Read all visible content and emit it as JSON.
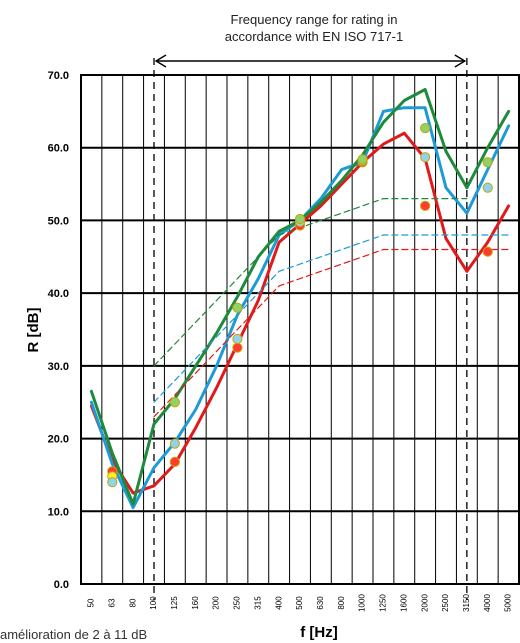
{
  "chart_data": {
    "type": "line",
    "ylabel": "R [dB]",
    "xlabel": "f [Hz]",
    "ylim": [
      0,
      70
    ],
    "y_ticks": [
      "0.0",
      "10.0",
      "20.0",
      "30.0",
      "40.0",
      "50.0",
      "60.0",
      "70.0"
    ],
    "x_ticks": [
      "50",
      "63",
      "80",
      "100",
      "125",
      "160",
      "200",
      "250",
      "315",
      "400",
      "500",
      "630",
      "800",
      "1000",
      "1250",
      "1600",
      "2000",
      "2500",
      "3150",
      "4000",
      "5000"
    ],
    "grid": true,
    "band_label_line1": "Frequency range for rating in",
    "band_label_line2": "accordance with EN ISO 717-1",
    "band_from": "100",
    "band_to": "3150",
    "series": [
      {
        "color": "#e01a1a",
        "style": "solid",
        "values": [
          24.5,
          17,
          12.5,
          13.5,
          16.5,
          21.5,
          27,
          33,
          39,
          47,
          49.5,
          52,
          55,
          58,
          60.5,
          62,
          58.5,
          47.5,
          43,
          47,
          52
        ]
      },
      {
        "color": "#1e9ad6",
        "style": "solid",
        "values": [
          25,
          16.5,
          10.5,
          16,
          19.5,
          24,
          30,
          37,
          42,
          48,
          50,
          53,
          57,
          58,
          65,
          65.5,
          65.5,
          54.5,
          51,
          57,
          63
        ]
      },
      {
        "color": "#1e8a3c",
        "style": "solid",
        "values": [
          26.5,
          18,
          11,
          22,
          25.5,
          30,
          34.5,
          39.5,
          45,
          48.5,
          50,
          52.5,
          55.5,
          59,
          63.5,
          66.5,
          68,
          59.5,
          54.5,
          60,
          65
        ]
      },
      {
        "color": "#1e8a3c",
        "style": "dashed",
        "values": [
          null,
          null,
          null,
          30,
          33,
          36,
          39,
          42,
          45,
          48,
          49,
          50,
          51,
          52,
          53,
          53,
          53,
          53,
          53,
          null,
          null
        ]
      },
      {
        "color": "#1e9ad6",
        "style": "dashed",
        "values": [
          null,
          null,
          null,
          25,
          28,
          31,
          34,
          37,
          40,
          43,
          44,
          45,
          46,
          47,
          48,
          48,
          48,
          48,
          48,
          48,
          48
        ]
      },
      {
        "color": "#e01a1a",
        "style": "dashed",
        "values": [
          null,
          null,
          null,
          23,
          26,
          29,
          32,
          35,
          38,
          41,
          42,
          43,
          44,
          45,
          46,
          46,
          46,
          46,
          46,
          46,
          46
        ]
      }
    ],
    "markers": [
      {
        "x": "63",
        "y": 15.5,
        "fill": "#ff3b30"
      },
      {
        "x": "63",
        "y": 14.8,
        "fill": "#ffee33"
      },
      {
        "x": "63",
        "y": 14.0,
        "fill": "#8fd3ec"
      },
      {
        "x": "125",
        "y": 16.8,
        "fill": "#ff3b30"
      },
      {
        "x": "125",
        "y": 19.3,
        "fill": "#8fd3ec"
      },
      {
        "x": "125",
        "y": 25.0,
        "fill": "#8ed36a"
      },
      {
        "x": "250",
        "y": 32.5,
        "fill": "#ff3b30"
      },
      {
        "x": "250",
        "y": 33.7,
        "fill": "#8fd3ec"
      },
      {
        "x": "250",
        "y": 38.0,
        "fill": "#8ed36a"
      },
      {
        "x": "500",
        "y": 49.3,
        "fill": "#ff3b30"
      },
      {
        "x": "500",
        "y": 49.8,
        "fill": "#8fd3ec"
      },
      {
        "x": "500",
        "y": 50.2,
        "fill": "#8ed36a"
      },
      {
        "x": "1000",
        "y": 58.0,
        "fill": "#ff3b30"
      },
      {
        "x": "1000",
        "y": 58.2,
        "fill": "#8fd3ec"
      },
      {
        "x": "1000",
        "y": 58.4,
        "fill": "#8ed36a"
      },
      {
        "x": "2000",
        "y": 52.0,
        "fill": "#ff3b30"
      },
      {
        "x": "2000",
        "y": 58.7,
        "fill": "#8fd3ec"
      },
      {
        "x": "2000",
        "y": 62.7,
        "fill": "#8ed36a"
      },
      {
        "x": "4000",
        "y": 45.7,
        "fill": "#ff3b30"
      },
      {
        "x": "4000",
        "y": 54.5,
        "fill": "#8fd3ec"
      },
      {
        "x": "4000",
        "y": 58.0,
        "fill": "#8ed36a"
      }
    ]
  },
  "footnote": "amélioration de 2 à 11 dB"
}
